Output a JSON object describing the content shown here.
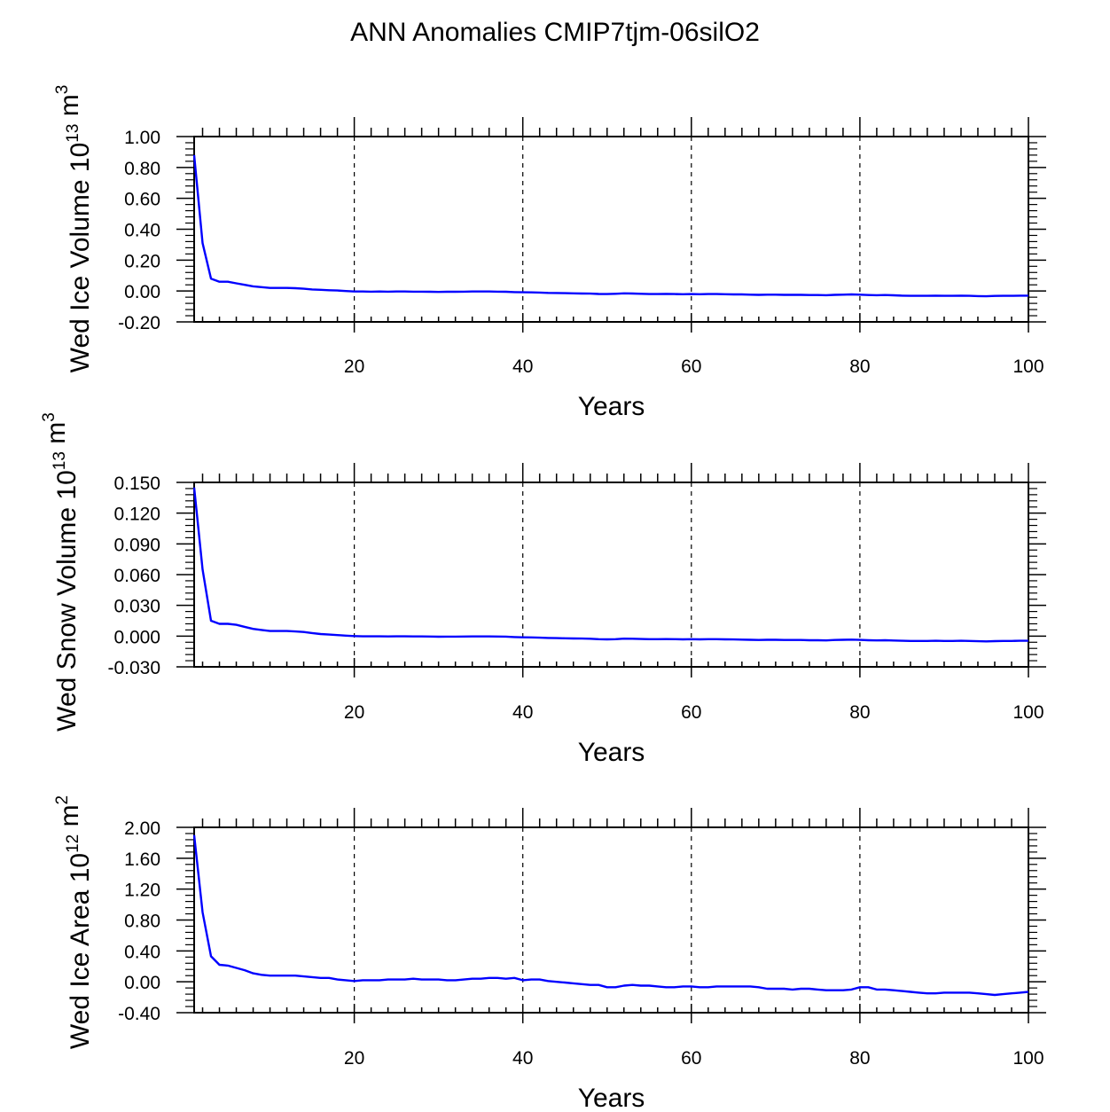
{
  "title": "ANN Anomalies CMIP7tjm-06silO2",
  "line_color": "#0000ff",
  "chart_data": [
    {
      "type": "line",
      "xlabel": "Years",
      "ylabel": {
        "main": "Wed Ice Volume 10",
        "exp": "13",
        "unit": " m",
        "unit_exp": "3"
      },
      "xlim": [
        1,
        100
      ],
      "ylim": [
        -0.2,
        1.0
      ],
      "xticks": [
        20,
        40,
        60,
        80,
        100
      ],
      "yticks": [
        "1.00",
        "0.80",
        "0.60",
        "0.40",
        "0.20",
        "0.00",
        "-0.20"
      ],
      "x": [
        1,
        2,
        3,
        4,
        5,
        6,
        7,
        8,
        9,
        10,
        11,
        12,
        13,
        14,
        15,
        16,
        17,
        18,
        19,
        20,
        21,
        22,
        23,
        24,
        25,
        26,
        27,
        28,
        29,
        30,
        31,
        32,
        33,
        34,
        35,
        36,
        37,
        38,
        39,
        40,
        41,
        42,
        43,
        44,
        45,
        46,
        47,
        48,
        49,
        50,
        51,
        52,
        53,
        54,
        55,
        56,
        57,
        58,
        59,
        60,
        61,
        62,
        63,
        64,
        65,
        66,
        67,
        68,
        69,
        70,
        71,
        72,
        73,
        74,
        75,
        76,
        77,
        78,
        79,
        80,
        81,
        82,
        83,
        84,
        85,
        86,
        87,
        88,
        89,
        90,
        91,
        92,
        93,
        94,
        95,
        96,
        97,
        98,
        99,
        100
      ],
      "values": [
        0.88,
        0.31,
        0.08,
        0.06,
        0.06,
        0.05,
        0.04,
        0.03,
        0.025,
        0.02,
        0.02,
        0.02,
        0.018,
        0.015,
        0.01,
        0.008,
        0.005,
        0.003,
        0.0,
        -0.003,
        -0.003,
        -0.004,
        -0.003,
        -0.004,
        -0.003,
        -0.003,
        -0.004,
        -0.004,
        -0.005,
        -0.006,
        -0.005,
        -0.005,
        -0.004,
        -0.003,
        -0.003,
        -0.003,
        -0.004,
        -0.005,
        -0.007,
        -0.008,
        -0.009,
        -0.01,
        -0.012,
        -0.013,
        -0.014,
        -0.015,
        -0.016,
        -0.017,
        -0.019,
        -0.02,
        -0.018,
        -0.015,
        -0.016,
        -0.018,
        -0.02,
        -0.02,
        -0.019,
        -0.02,
        -0.021,
        -0.02,
        -0.021,
        -0.02,
        -0.02,
        -0.021,
        -0.022,
        -0.022,
        -0.024,
        -0.025,
        -0.024,
        -0.024,
        -0.025,
        -0.025,
        -0.025,
        -0.026,
        -0.026,
        -0.027,
        -0.025,
        -0.024,
        -0.022,
        -0.024,
        -0.026,
        -0.027,
        -0.026,
        -0.028,
        -0.03,
        -0.031,
        -0.031,
        -0.031,
        -0.03,
        -0.031,
        -0.031,
        -0.03,
        -0.031,
        -0.033,
        -0.034,
        -0.032,
        -0.031,
        -0.031,
        -0.03,
        -0.03
      ]
    },
    {
      "type": "line",
      "xlabel": "Years",
      "ylabel": {
        "main": "Wed Snow Volume 10",
        "exp": "13",
        "unit": " m",
        "unit_exp": "3"
      },
      "xlim": [
        1,
        100
      ],
      "ylim": [
        -0.03,
        0.15
      ],
      "xticks": [
        20,
        40,
        60,
        80,
        100
      ],
      "yticks": [
        "0.150",
        "0.120",
        "0.090",
        "0.060",
        "0.030",
        "0.000",
        "-0.030"
      ],
      "x": [
        1,
        2,
        3,
        4,
        5,
        6,
        7,
        8,
        9,
        10,
        11,
        12,
        13,
        14,
        15,
        16,
        17,
        18,
        19,
        20,
        21,
        22,
        23,
        24,
        25,
        26,
        27,
        28,
        29,
        30,
        31,
        32,
        33,
        34,
        35,
        36,
        37,
        38,
        39,
        40,
        41,
        42,
        43,
        44,
        45,
        46,
        47,
        48,
        49,
        50,
        51,
        52,
        53,
        54,
        55,
        56,
        57,
        58,
        59,
        60,
        61,
        62,
        63,
        64,
        65,
        66,
        67,
        68,
        69,
        70,
        71,
        72,
        73,
        74,
        75,
        76,
        77,
        78,
        79,
        80,
        81,
        82,
        83,
        84,
        85,
        86,
        87,
        88,
        89,
        90,
        91,
        92,
        93,
        94,
        95,
        96,
        97,
        98,
        99,
        100
      ],
      "values": [
        0.145,
        0.065,
        0.015,
        0.012,
        0.012,
        0.011,
        0.009,
        0.007,
        0.006,
        0.005,
        0.005,
        0.005,
        0.0045,
        0.004,
        0.003,
        0.002,
        0.0015,
        0.001,
        0.0005,
        0.0,
        -0.0002,
        -0.0002,
        -0.0002,
        -0.0003,
        -0.0002,
        -0.0002,
        -0.0003,
        -0.0003,
        -0.0004,
        -0.0006,
        -0.0005,
        -0.0005,
        -0.0004,
        -0.0003,
        -0.0003,
        -0.0003,
        -0.0004,
        -0.0005,
        -0.0009,
        -0.0012,
        -0.0013,
        -0.0015,
        -0.0018,
        -0.002,
        -0.0021,
        -0.0023,
        -0.0024,
        -0.0026,
        -0.003,
        -0.0032,
        -0.003,
        -0.0025,
        -0.0026,
        -0.0028,
        -0.003,
        -0.003,
        -0.0029,
        -0.003,
        -0.0032,
        -0.003,
        -0.0032,
        -0.003,
        -0.003,
        -0.0032,
        -0.0033,
        -0.0034,
        -0.0036,
        -0.0038,
        -0.0036,
        -0.0036,
        -0.0038,
        -0.0038,
        -0.0038,
        -0.004,
        -0.004,
        -0.0042,
        -0.0038,
        -0.0036,
        -0.0034,
        -0.0037,
        -0.004,
        -0.0042,
        -0.004,
        -0.0043,
        -0.0046,
        -0.0047,
        -0.0047,
        -0.0047,
        -0.0046,
        -0.0047,
        -0.0047,
        -0.0046,
        -0.0047,
        -0.005,
        -0.0052,
        -0.0049,
        -0.0047,
        -0.0047,
        -0.0046,
        -0.0046
      ]
    },
    {
      "type": "line",
      "xlabel": "Years",
      "ylabel": {
        "main": "Wed Ice Area 10",
        "exp": "12",
        "unit": " m",
        "unit_exp": "2"
      },
      "xlim": [
        1,
        100
      ],
      "ylim": [
        -0.4,
        2.0
      ],
      "xticks": [
        20,
        40,
        60,
        80,
        100
      ],
      "yticks": [
        "2.00",
        "1.60",
        "1.20",
        "0.80",
        "0.40",
        "0.00",
        "-0.40"
      ],
      "x": [
        1,
        2,
        3,
        4,
        5,
        6,
        7,
        8,
        9,
        10,
        11,
        12,
        13,
        14,
        15,
        16,
        17,
        18,
        19,
        20,
        21,
        22,
        23,
        24,
        25,
        26,
        27,
        28,
        29,
        30,
        31,
        32,
        33,
        34,
        35,
        36,
        37,
        38,
        39,
        40,
        41,
        42,
        43,
        44,
        45,
        46,
        47,
        48,
        49,
        50,
        51,
        52,
        53,
        54,
        55,
        56,
        57,
        58,
        59,
        60,
        61,
        62,
        63,
        64,
        65,
        66,
        67,
        68,
        69,
        70,
        71,
        72,
        73,
        74,
        75,
        76,
        77,
        78,
        79,
        80,
        81,
        82,
        83,
        84,
        85,
        86,
        87,
        88,
        89,
        90,
        91,
        92,
        93,
        94,
        95,
        96,
        97,
        98,
        99,
        100
      ],
      "values": [
        1.9,
        0.9,
        0.33,
        0.22,
        0.21,
        0.18,
        0.15,
        0.11,
        0.09,
        0.08,
        0.08,
        0.08,
        0.08,
        0.07,
        0.06,
        0.05,
        0.05,
        0.03,
        0.02,
        0.01,
        0.02,
        0.02,
        0.02,
        0.03,
        0.03,
        0.03,
        0.04,
        0.03,
        0.03,
        0.03,
        0.02,
        0.02,
        0.03,
        0.04,
        0.04,
        0.05,
        0.05,
        0.04,
        0.05,
        0.02,
        0.03,
        0.03,
        0.01,
        0.0,
        -0.01,
        -0.02,
        -0.03,
        -0.04,
        -0.04,
        -0.07,
        -0.07,
        -0.05,
        -0.04,
        -0.05,
        -0.05,
        -0.06,
        -0.07,
        -0.07,
        -0.06,
        -0.06,
        -0.07,
        -0.07,
        -0.06,
        -0.06,
        -0.06,
        -0.06,
        -0.06,
        -0.07,
        -0.09,
        -0.09,
        -0.09,
        -0.1,
        -0.09,
        -0.09,
        -0.1,
        -0.11,
        -0.11,
        -0.11,
        -0.1,
        -0.07,
        -0.07,
        -0.1,
        -0.1,
        -0.11,
        -0.12,
        -0.13,
        -0.14,
        -0.15,
        -0.15,
        -0.14,
        -0.14,
        -0.14,
        -0.14,
        -0.15,
        -0.16,
        -0.17,
        -0.16,
        -0.15,
        -0.14,
        -0.13
      ]
    }
  ]
}
